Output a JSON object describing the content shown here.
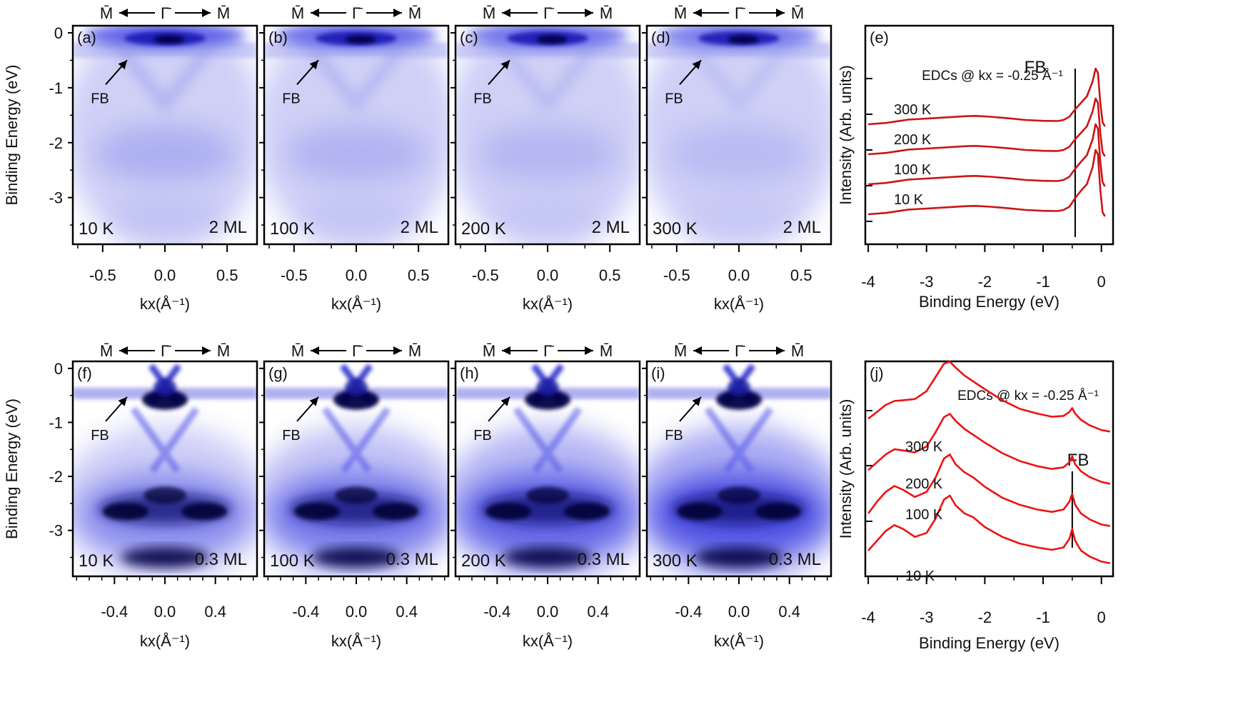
{
  "figure": {
    "arpes_top": {
      "panel_labels": [
        "(a)",
        "(b)",
        "(c)",
        "(d)"
      ],
      "temperatures": [
        "10 K",
        "100 K",
        "200 K",
        "300 K"
      ],
      "coverage": "2 ML",
      "flat_band_label": "FB",
      "x_ticks": [
        "-0.5",
        "0.0",
        "0.5"
      ],
      "y_ticks": [
        "0",
        "-1",
        "-2",
        "-3"
      ],
      "xlabel": "kx(Å⁻¹)",
      "ylabel": "Binding Energy (eV)",
      "path_labels": {
        "left": "M̄",
        "center": "Γ̄",
        "right": "M̄"
      }
    },
    "arpes_bottom": {
      "panel_labels": [
        "(f)",
        "(g)",
        "(h)",
        "(i)"
      ],
      "temperatures": [
        "10 K",
        "100 K",
        "200 K",
        "300 K"
      ],
      "coverage": "0.3 ML",
      "flat_band_label": "FB",
      "x_ticks": [
        "-0.4",
        "0.0",
        "0.4"
      ],
      "y_ticks": [
        "0",
        "-1",
        "-2",
        "-3"
      ],
      "xlabel": "kx(Å⁻¹)",
      "ylabel": "Binding Energy (eV)",
      "path_labels": {
        "left": "M̄",
        "center": "Γ̄",
        "right": "M̄"
      }
    },
    "colors": {
      "arpes_dark": "#000044",
      "arpes_mid": "#2a2af0",
      "edc_top": "#cc1414",
      "edc_bottom": "#ee1111"
    }
  },
  "chart_data": [
    {
      "type": "line",
      "panel": "(e)",
      "title": "EDCs @ kx = -0.25 Å⁻¹",
      "annotation": "FB",
      "fb_energy": -0.45,
      "xlabel": "Binding Energy (eV)",
      "ylabel": "Intensity (Arb. units)",
      "xlim": [
        -4.05,
        0.2
      ],
      "x_ticks": [
        "-4",
        "-3",
        "-2",
        "-1",
        "0"
      ],
      "series": [
        {
          "name": "10 K",
          "x": [
            -4.0,
            -3.7,
            -3.5,
            -3.3,
            -3.1,
            -2.9,
            -2.6,
            -2.3,
            -2.15,
            -1.9,
            -1.6,
            -1.3,
            -1.0,
            -0.75,
            -0.65,
            -0.55,
            -0.45,
            -0.35,
            -0.25,
            -0.15,
            -0.1,
            -0.06,
            -0.02,
            0.02,
            0.06
          ],
          "y": [
            0.0,
            0.06,
            0.14,
            0.22,
            0.25,
            0.28,
            0.33,
            0.38,
            0.39,
            0.35,
            0.28,
            0.2,
            0.16,
            0.15,
            0.2,
            0.35,
            0.75,
            1.1,
            1.4,
            2.2,
            3.0,
            2.8,
            1.2,
            0.1,
            -0.1
          ]
        },
        {
          "name": "100 K",
          "x": [
            -4.0,
            -3.7,
            -3.5,
            -3.3,
            -3.1,
            -2.9,
            -2.6,
            -2.3,
            -2.15,
            -1.9,
            -1.6,
            -1.3,
            -1.0,
            -0.75,
            -0.65,
            -0.55,
            -0.45,
            -0.35,
            -0.25,
            -0.15,
            -0.1,
            -0.06,
            -0.02,
            0.02,
            0.06
          ],
          "y": [
            0.0,
            0.06,
            0.14,
            0.22,
            0.25,
            0.28,
            0.33,
            0.38,
            0.39,
            0.35,
            0.28,
            0.2,
            0.16,
            0.15,
            0.2,
            0.35,
            0.72,
            1.05,
            1.35,
            2.1,
            2.8,
            2.6,
            1.1,
            0.1,
            -0.1
          ]
        },
        {
          "name": "200 K",
          "x": [
            -4.0,
            -3.7,
            -3.5,
            -3.3,
            -3.1,
            -2.9,
            -2.6,
            -2.3,
            -2.15,
            -1.9,
            -1.6,
            -1.3,
            -1.0,
            -0.75,
            -0.65,
            -0.55,
            -0.45,
            -0.35,
            -0.25,
            -0.15,
            -0.1,
            -0.06,
            -0.02,
            0.02,
            0.06
          ],
          "y": [
            0.0,
            0.06,
            0.14,
            0.22,
            0.25,
            0.28,
            0.33,
            0.38,
            0.39,
            0.35,
            0.28,
            0.2,
            0.16,
            0.15,
            0.2,
            0.35,
            0.7,
            1.0,
            1.3,
            2.0,
            2.6,
            2.4,
            1.05,
            0.1,
            -0.1
          ]
        },
        {
          "name": "300 K",
          "x": [
            -4.0,
            -3.7,
            -3.5,
            -3.3,
            -3.1,
            -2.9,
            -2.6,
            -2.3,
            -2.15,
            -1.9,
            -1.6,
            -1.3,
            -1.0,
            -0.75,
            -0.65,
            -0.55,
            -0.45,
            -0.35,
            -0.25,
            -0.15,
            -0.1,
            -0.06,
            -0.02,
            0.02,
            0.06
          ],
          "y": [
            0.0,
            0.06,
            0.14,
            0.22,
            0.25,
            0.28,
            0.33,
            0.38,
            0.39,
            0.35,
            0.28,
            0.2,
            0.16,
            0.15,
            0.2,
            0.35,
            0.7,
            1.0,
            1.3,
            2.0,
            2.6,
            2.4,
            1.05,
            0.1,
            -0.1
          ]
        }
      ]
    },
    {
      "type": "line",
      "panel": "(j)",
      "title": "EDCs @ kx = -0.25 Å⁻¹",
      "annotation": "FB",
      "fb_energy": -0.5,
      "xlabel": "Binding Energy (eV)",
      "ylabel": "Intensity (Arb. units)",
      "xlim": [
        -4.05,
        0.2
      ],
      "x_ticks": [
        "-4",
        "-3",
        "-2",
        "-1",
        "0"
      ],
      "series": [
        {
          "name": "10 K",
          "x": [
            -4.0,
            -3.85,
            -3.7,
            -3.55,
            -3.4,
            -3.2,
            -3.0,
            -2.85,
            -2.7,
            -2.6,
            -2.5,
            -2.35,
            -2.2,
            -2.0,
            -1.7,
            -1.4,
            -1.1,
            -0.85,
            -0.65,
            -0.55,
            -0.5,
            -0.45,
            -0.35,
            -0.2,
            0.0,
            0.15
          ],
          "y": [
            0.2,
            0.45,
            0.7,
            0.85,
            0.75,
            0.55,
            0.65,
            1.0,
            1.5,
            1.6,
            1.35,
            1.15,
            1.05,
            0.8,
            0.55,
            0.38,
            0.28,
            0.22,
            0.28,
            0.5,
            0.75,
            0.45,
            0.2,
            0.05,
            -0.08,
            -0.12
          ]
        },
        {
          "name": "100 K",
          "x": [
            -4.0,
            -3.85,
            -3.7,
            -3.55,
            -3.4,
            -3.2,
            -3.0,
            -2.85,
            -2.7,
            -2.6,
            -2.5,
            -2.35,
            -2.2,
            -2.0,
            -1.7,
            -1.4,
            -1.1,
            -0.85,
            -0.65,
            -0.55,
            -0.5,
            -0.45,
            -0.35,
            -0.2,
            0.0,
            0.15
          ],
          "y": [
            0.2,
            0.5,
            0.75,
            0.9,
            0.8,
            0.62,
            0.75,
            1.1,
            1.6,
            1.7,
            1.45,
            1.25,
            1.12,
            0.88,
            0.6,
            0.42,
            0.3,
            0.24,
            0.3,
            0.5,
            0.7,
            0.42,
            0.2,
            0.05,
            -0.08,
            -0.12
          ]
        },
        {
          "name": "200 K",
          "x": [
            -4.0,
            -3.85,
            -3.7,
            -3.55,
            -3.4,
            -3.2,
            -3.0,
            -2.85,
            -2.7,
            -2.6,
            -2.5,
            -2.35,
            -2.2,
            -2.0,
            -1.7,
            -1.4,
            -1.1,
            -0.85,
            -0.65,
            -0.55,
            -0.5,
            -0.45,
            -0.35,
            -0.2,
            0.0,
            0.15
          ],
          "y": [
            0.25,
            0.45,
            0.65,
            0.78,
            0.75,
            0.7,
            0.85,
            1.2,
            1.6,
            1.68,
            1.5,
            1.3,
            1.15,
            0.95,
            0.68,
            0.48,
            0.35,
            0.28,
            0.32,
            0.45,
            0.6,
            0.4,
            0.22,
            0.07,
            -0.05,
            -0.1
          ]
        },
        {
          "name": "300 K",
          "x": [
            -4.0,
            -3.85,
            -3.7,
            -3.55,
            -3.4,
            -3.2,
            -3.0,
            -2.85,
            -2.7,
            -2.6,
            -2.5,
            -2.35,
            -2.2,
            -2.0,
            -1.7,
            -1.4,
            -1.1,
            -0.85,
            -0.65,
            -0.55,
            -0.5,
            -0.45,
            -0.35,
            -0.2,
            0.0,
            0.15
          ],
          "y": [
            0.25,
            0.42,
            0.6,
            0.7,
            0.72,
            0.75,
            0.95,
            1.3,
            1.65,
            1.7,
            1.55,
            1.35,
            1.2,
            1.0,
            0.72,
            0.5,
            0.38,
            0.3,
            0.32,
            0.42,
            0.52,
            0.38,
            0.22,
            0.08,
            -0.04,
            -0.08
          ]
        }
      ]
    }
  ]
}
